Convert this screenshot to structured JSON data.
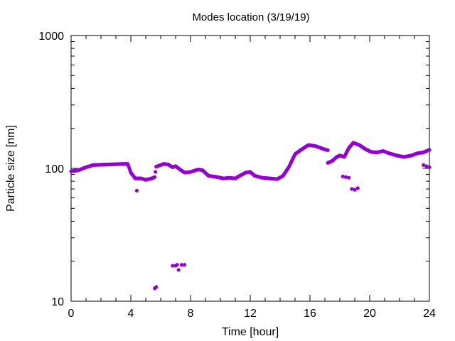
{
  "chart_data": {
    "type": "scatter",
    "title": "Modes location (3/19/19)",
    "xlabel": "Time [hour]",
    "ylabel": "Particle size [nm]",
    "xlim": [
      0,
      24
    ],
    "ylim": [
      10,
      1000
    ],
    "yscale": "log",
    "x_ticks": [
      0,
      4,
      8,
      12,
      16,
      20,
      24
    ],
    "y_ticks": [
      10,
      100,
      1000
    ],
    "y_tick_labels": [
      "10",
      "100",
      "1000"
    ],
    "marker_color": "#9400d3",
    "grid": false,
    "main_mode_path": [
      [
        0.0,
        95
      ],
      [
        0.5,
        97
      ],
      [
        1.0,
        102
      ],
      [
        1.5,
        106
      ],
      [
        2.5,
        107
      ],
      [
        3.5,
        108
      ],
      [
        3.8,
        108
      ],
      [
        4.0,
        93
      ],
      [
        4.3,
        84
      ],
      [
        4.7,
        84
      ],
      [
        5.0,
        82
      ],
      [
        5.4,
        84
      ],
      [
        5.6,
        86
      ],
      [
        5.7,
        103
      ],
      [
        6.2,
        108
      ],
      [
        6.5,
        107
      ],
      [
        6.8,
        102
      ],
      [
        7.0,
        104
      ],
      [
        7.3,
        98
      ],
      [
        7.6,
        93
      ],
      [
        8.0,
        94
      ],
      [
        8.5,
        98
      ],
      [
        8.8,
        97
      ],
      [
        9.2,
        88
      ],
      [
        9.8,
        86
      ],
      [
        10.2,
        84
      ],
      [
        10.6,
        85
      ],
      [
        11.0,
        84
      ],
      [
        11.3,
        88
      ],
      [
        11.7,
        93
      ],
      [
        12.0,
        94
      ],
      [
        12.3,
        88
      ],
      [
        12.8,
        85
      ],
      [
        13.3,
        84
      ],
      [
        13.8,
        83
      ],
      [
        14.2,
        88
      ],
      [
        14.6,
        103
      ],
      [
        15.0,
        128
      ],
      [
        15.4,
        138
      ],
      [
        15.9,
        150
      ],
      [
        16.4,
        147
      ],
      [
        16.9,
        140
      ],
      [
        17.2,
        137
      ],
      [
        17.2,
        110
      ],
      [
        17.5,
        114
      ],
      [
        17.8,
        122
      ],
      [
        18.0,
        125
      ],
      [
        18.3,
        122
      ],
      [
        18.6,
        142
      ],
      [
        18.9,
        156
      ],
      [
        19.3,
        150
      ],
      [
        19.7,
        140
      ],
      [
        20.1,
        133
      ],
      [
        20.5,
        132
      ],
      [
        20.9,
        135
      ],
      [
        21.3,
        130
      ],
      [
        21.8,
        125
      ],
      [
        22.3,
        122
      ],
      [
        22.8,
        125
      ],
      [
        23.2,
        130
      ],
      [
        23.6,
        132
      ],
      [
        24.0,
        138
      ]
    ],
    "secondary_points": [
      [
        4.4,
        68
      ],
      [
        5.6,
        12.5
      ],
      [
        5.7,
        12.8
      ],
      [
        6.8,
        18.5
      ],
      [
        7.0,
        18.5
      ],
      [
        7.1,
        18.8
      ],
      [
        7.2,
        17.2
      ],
      [
        7.4,
        18.8
      ],
      [
        7.6,
        18.8
      ],
      [
        18.2,
        87
      ],
      [
        18.4,
        86
      ],
      [
        18.6,
        85
      ],
      [
        18.8,
        70
      ],
      [
        19.0,
        69
      ],
      [
        19.2,
        71
      ],
      [
        23.6,
        106
      ],
      [
        23.8,
        104
      ],
      [
        24.0,
        102
      ]
    ]
  }
}
